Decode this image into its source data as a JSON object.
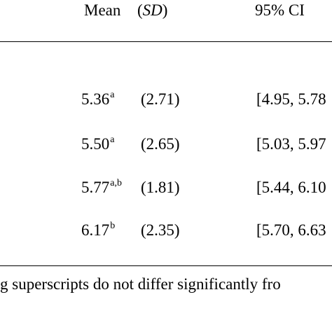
{
  "table": {
    "headers": {
      "mean": "Mean",
      "sd_open": "(",
      "sd": "SD",
      "sd_close": ")",
      "ci": "95% CI"
    },
    "rows": [
      {
        "mean": "5.36",
        "sup": "a",
        "sd": "(2.71)",
        "ci": "[4.95, 5.78"
      },
      {
        "mean": "5.50",
        "sup": "a",
        "sd": "(2.65)",
        "ci": "[5.03, 5.97"
      },
      {
        "mean": "5.77",
        "sup": "a,b",
        "sd": "(1.81)",
        "ci": "[5.44, 6.10"
      },
      {
        "mean": "6.17",
        "sup": "b",
        "sd": "(2.35)",
        "ci": "[5.70, 6.63"
      }
    ],
    "note": "g superscripts do not differ significantly fro"
  }
}
